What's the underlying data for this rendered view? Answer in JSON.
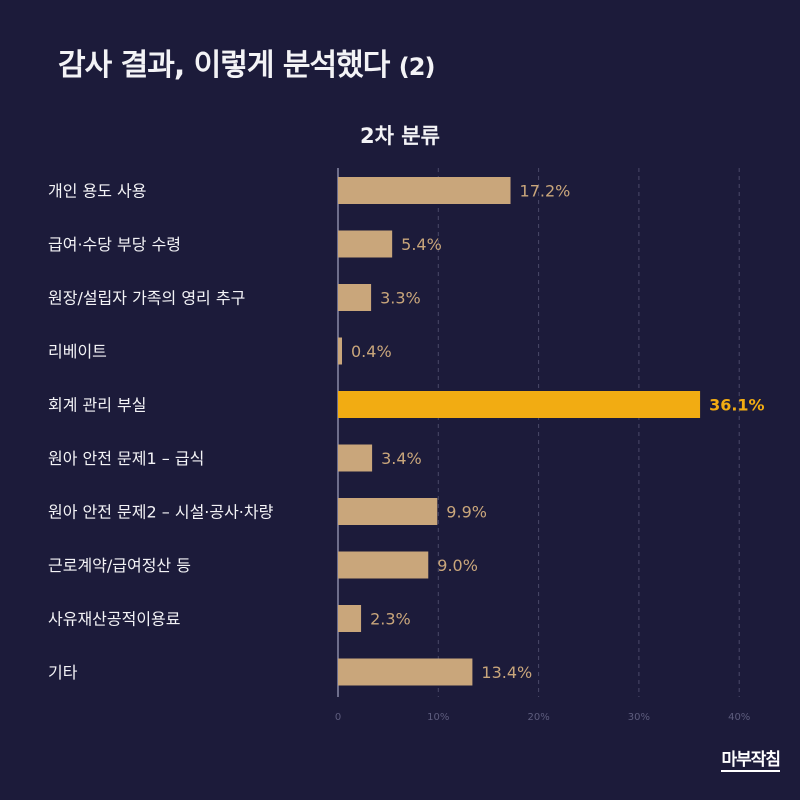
{
  "header": {
    "title": "감사 결과, 이렇게 분석했다",
    "title_number": "(2)"
  },
  "brand": {
    "logo_text": "마부작침"
  },
  "colors": {
    "background": "#1c1b3a",
    "bar": "#c9a67b",
    "highlight": "#f2ac12",
    "grid": "#4a4968",
    "tick": "#5e5d7e",
    "text": "#f3f3f6"
  },
  "chart_data": {
    "type": "bar",
    "orientation": "horizontal",
    "title": "2차 분류",
    "categories": [
      "개인 용도 사용",
      "급여·수당 부당 수령",
      "원장/설립자 가족의 영리 추구",
      "리베이트",
      "회계 관리 부실",
      "원아 안전 문제1 – 급식",
      "원아 안전 문제2 – 시설·공사·차량",
      "근로계약/급여정산 등",
      "사유재산공적이용료",
      "기타"
    ],
    "values": [
      17.2,
      5.4,
      3.3,
      0.4,
      36.1,
      3.4,
      9.9,
      9.0,
      2.3,
      13.4
    ],
    "value_labels": [
      "17.2%",
      "5.4%",
      "3.3%",
      "0.4%",
      "36.1%",
      "3.4%",
      "9.9%",
      "9.0%",
      "2.3%",
      "13.4%"
    ],
    "highlight_index": 4,
    "xlim": [
      0,
      40
    ],
    "xticks": [
      0,
      10,
      20,
      30,
      40
    ],
    "xtick_labels": [
      "0",
      "10%",
      "20%",
      "30%",
      "40%"
    ],
    "grid": true,
    "xlabel": "",
    "ylabel": ""
  }
}
